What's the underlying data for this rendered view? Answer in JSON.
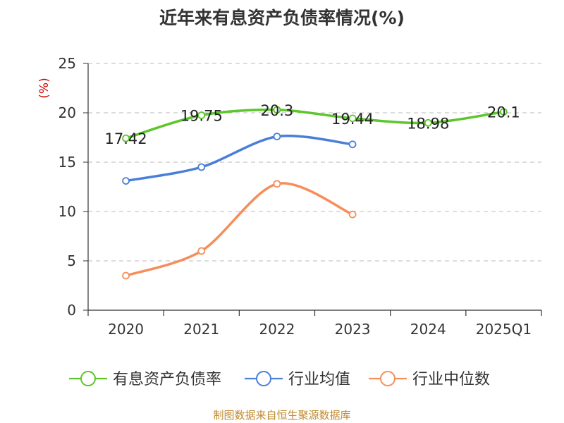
{
  "chart_data": {
    "type": "line",
    "title": "近年来有息资产负债率情况(%)",
    "ylabel": "(%)",
    "ylim": [
      0,
      25
    ],
    "yticks": [
      0,
      5,
      10,
      15,
      20,
      25
    ],
    "categories": [
      "2020",
      "2021",
      "2022",
      "2023",
      "2024",
      "2025Q1"
    ],
    "grid": true,
    "legend_position": "bottom",
    "series": [
      {
        "name": "有息资产负债率",
        "color": "#5cc62b",
        "values": [
          17.42,
          19.75,
          20.3,
          19.44,
          18.98,
          20.1
        ],
        "labels": [
          "17.42",
          "19.75",
          "20.3",
          "19.44",
          "18.98",
          "20.1"
        ]
      },
      {
        "name": "行业均值",
        "color": "#4a7fd8",
        "values": [
          13.1,
          14.5,
          17.6,
          16.8,
          null,
          null
        ]
      },
      {
        "name": "行业中位数",
        "color": "#f58e5a",
        "values": [
          3.5,
          6.0,
          12.8,
          9.7,
          null,
          null
        ]
      }
    ]
  },
  "source": "制图数据来自恒生聚源数据库",
  "colors": {
    "axis": "#333333",
    "grid": "#bbbbbb",
    "unit": "#cc0000",
    "source": "#c08a2e"
  }
}
